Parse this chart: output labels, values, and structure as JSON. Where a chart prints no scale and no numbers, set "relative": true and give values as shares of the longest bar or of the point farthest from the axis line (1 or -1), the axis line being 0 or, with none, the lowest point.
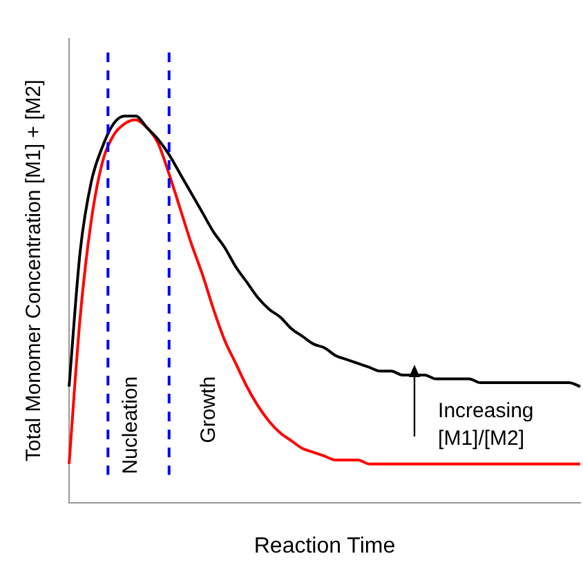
{
  "chart_data": {
    "type": "line",
    "relative": true,
    "xlabel": "Reaction Time",
    "ylabel": "Total Monomer Concentration [M1] + [M2]",
    "marker": "none",
    "line_style": "solid",
    "categories": [
      null,
      null,
      null,
      null,
      null,
      null,
      null,
      null,
      null,
      null,
      null,
      null,
      null,
      null,
      null,
      null,
      null,
      null,
      null,
      null,
      null,
      null,
      null,
      null,
      null,
      null,
      null,
      null,
      null,
      null,
      null,
      null,
      null,
      null,
      null,
      null,
      null,
      null,
      null,
      null,
      null,
      null,
      null,
      null,
      null,
      null,
      null
    ],
    "series": [
      {
        "color": "#000000",
        "values": [
          0.3,
          0.65,
          0.83,
          0.92,
          0.98,
          1.0,
          1.0,
          0.97,
          0.94,
          0.9,
          0.85,
          0.8,
          0.75,
          0.7,
          0.66,
          0.61,
          0.57,
          0.53,
          0.5,
          0.48,
          0.45,
          0.43,
          0.41,
          0.4,
          0.38,
          0.37,
          0.36,
          0.35,
          0.34,
          0.34,
          0.33,
          0.33,
          0.33,
          0.32,
          0.32,
          0.32,
          0.32,
          0.31,
          0.31,
          0.31,
          0.31,
          0.31,
          0.31,
          0.31,
          0.31,
          0.31,
          0.3
        ]
      },
      {
        "color": "#ff0000",
        "values": [
          0.1,
          0.48,
          0.73,
          0.88,
          0.95,
          0.98,
          0.99,
          0.97,
          0.93,
          0.85,
          0.76,
          0.67,
          0.59,
          0.5,
          0.42,
          0.36,
          0.3,
          0.25,
          0.21,
          0.18,
          0.16,
          0.14,
          0.13,
          0.12,
          0.11,
          0.11,
          0.11,
          0.1,
          0.1,
          0.1,
          0.1,
          0.1,
          0.1,
          0.1,
          0.1,
          0.1,
          0.1,
          0.1,
          0.1,
          0.1,
          0.1,
          0.1,
          0.1,
          0.1,
          0.1,
          0.1,
          0.1
        ]
      }
    ],
    "annotations": [
      "Nucleation",
      "Growth",
      "Increasing\n[M1]/[M2]"
    ]
  }
}
